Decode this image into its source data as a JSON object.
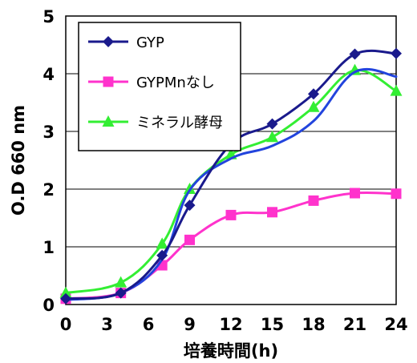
{
  "chart_data": {
    "type": "line",
    "title": "",
    "xlabel": "培養時間(h)",
    "ylabel": "O.D 660 nm",
    "xlim": [
      0,
      24
    ],
    "ylim": [
      0,
      5
    ],
    "xticks": [
      0,
      3,
      6,
      9,
      12,
      15,
      18,
      21,
      24
    ],
    "yticks": [
      0,
      1,
      2,
      3,
      4,
      5
    ],
    "grid": "horizontal",
    "legend": "top-left",
    "series": [
      {
        "name": "GYP",
        "color": "#1a1a8c",
        "marker": "diamond",
        "x": [
          0,
          4,
          7,
          9,
          12,
          15,
          18,
          21,
          24
        ],
        "y": [
          0.1,
          0.2,
          0.85,
          1.72,
          2.78,
          3.13,
          3.65,
          4.34,
          4.35
        ]
      },
      {
        "name": "GYPMnなし",
        "color": "#ff33cc",
        "marker": "square",
        "x": [
          0,
          4,
          7,
          9,
          12,
          15,
          18,
          21,
          24
        ],
        "y": [
          0.1,
          0.2,
          0.68,
          1.12,
          1.55,
          1.6,
          1.8,
          1.93,
          1.92
        ]
      },
      {
        "name": "ミネラル酵母",
        "color": "#33ee33",
        "marker": "triangle",
        "x": [
          0,
          4,
          7,
          9,
          12,
          15,
          18,
          21,
          24
        ],
        "y": [
          0.2,
          0.38,
          1.05,
          2.0,
          2.6,
          2.9,
          3.42,
          4.06,
          3.7
        ]
      },
      {
        "name": "",
        "color": "#2244dd",
        "marker": "circle",
        "x": [
          0,
          4,
          7,
          9,
          12,
          15,
          18,
          21,
          24
        ],
        "y": [
          0.08,
          0.2,
          0.78,
          1.98,
          2.53,
          2.75,
          3.18,
          4.03,
          3.95
        ]
      }
    ]
  }
}
